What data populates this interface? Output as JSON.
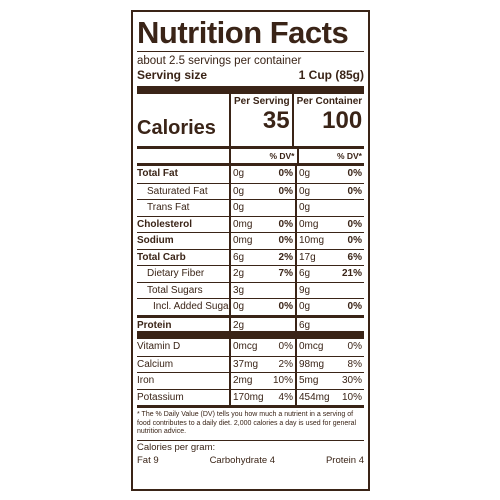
{
  "title": "Nutrition Facts",
  "servings_per_container": "about 2.5 servings per container",
  "serving_size": {
    "label": "Serving size",
    "value": "1 Cup (85g)"
  },
  "calories": {
    "label": "Calories",
    "per_serving_header": "Per Serving",
    "per_container_header": "Per Container",
    "per_serving": "35",
    "per_container": "100"
  },
  "dv_header": "% DV*",
  "nutrients_main": [
    {
      "name": "Total Fat",
      "amt1": "0g",
      "dv1": "0%",
      "amt2": "0g",
      "dv2": "0%"
    },
    {
      "name": "Saturated Fat",
      "amt1": "0g",
      "dv1": "0%",
      "amt2": "0g",
      "dv2": "0%"
    },
    {
      "name": "Trans Fat",
      "amt1": "0g",
      "dv1": "",
      "amt2": "0g",
      "dv2": ""
    },
    {
      "name": "Cholesterol",
      "amt1": "0mg",
      "dv1": "0%",
      "amt2": "0mg",
      "dv2": "0%"
    },
    {
      "name": "Sodium",
      "amt1": "0mg",
      "dv1": "0%",
      "amt2": "10mg",
      "dv2": "0%"
    },
    {
      "name": "Total Carb",
      "amt1": "6g",
      "dv1": "2%",
      "amt2": "17g",
      "dv2": "6%"
    },
    {
      "name": "Dietary Fiber",
      "amt1": "2g",
      "dv1": "7%",
      "amt2": "6g",
      "dv2": "21%"
    },
    {
      "name": "Total Sugars",
      "amt1": "3g",
      "dv1": "",
      "amt2": "9g",
      "dv2": ""
    },
    {
      "name": "Incl. Added Sugars",
      "amt1": "0g",
      "dv1": "0%",
      "amt2": "0g",
      "dv2": "0%"
    },
    {
      "name": "Protein",
      "amt1": "2g",
      "dv1": "",
      "amt2": "6g",
      "dv2": ""
    }
  ],
  "vitamins": [
    {
      "name": "Vitamin D",
      "amt1": "0mcg",
      "dv1": "0%",
      "amt2": "0mcg",
      "dv2": "0%"
    },
    {
      "name": "Calcium",
      "amt1": "37mg",
      "dv1": "2%",
      "amt2": "98mg",
      "dv2": "8%"
    },
    {
      "name": "Iron",
      "amt1": "2mg",
      "dv1": "10%",
      "amt2": "5mg",
      "dv2": "30%"
    },
    {
      "name": "Potassium",
      "amt1": "170mg",
      "dv1": "4%",
      "amt2": "454mg",
      "dv2": "10%"
    }
  ],
  "footnote": "* The % Daily Value (DV) tells you how much a nutrient in a serving of food contributes to a daily diet. 2,000 calories a day is used for general nutrition advice.",
  "calories_per_gram": {
    "label": "Calories per gram:",
    "fat": "Fat 9",
    "carb": "Carbohydrate 4",
    "protein": "Protein 4"
  }
}
